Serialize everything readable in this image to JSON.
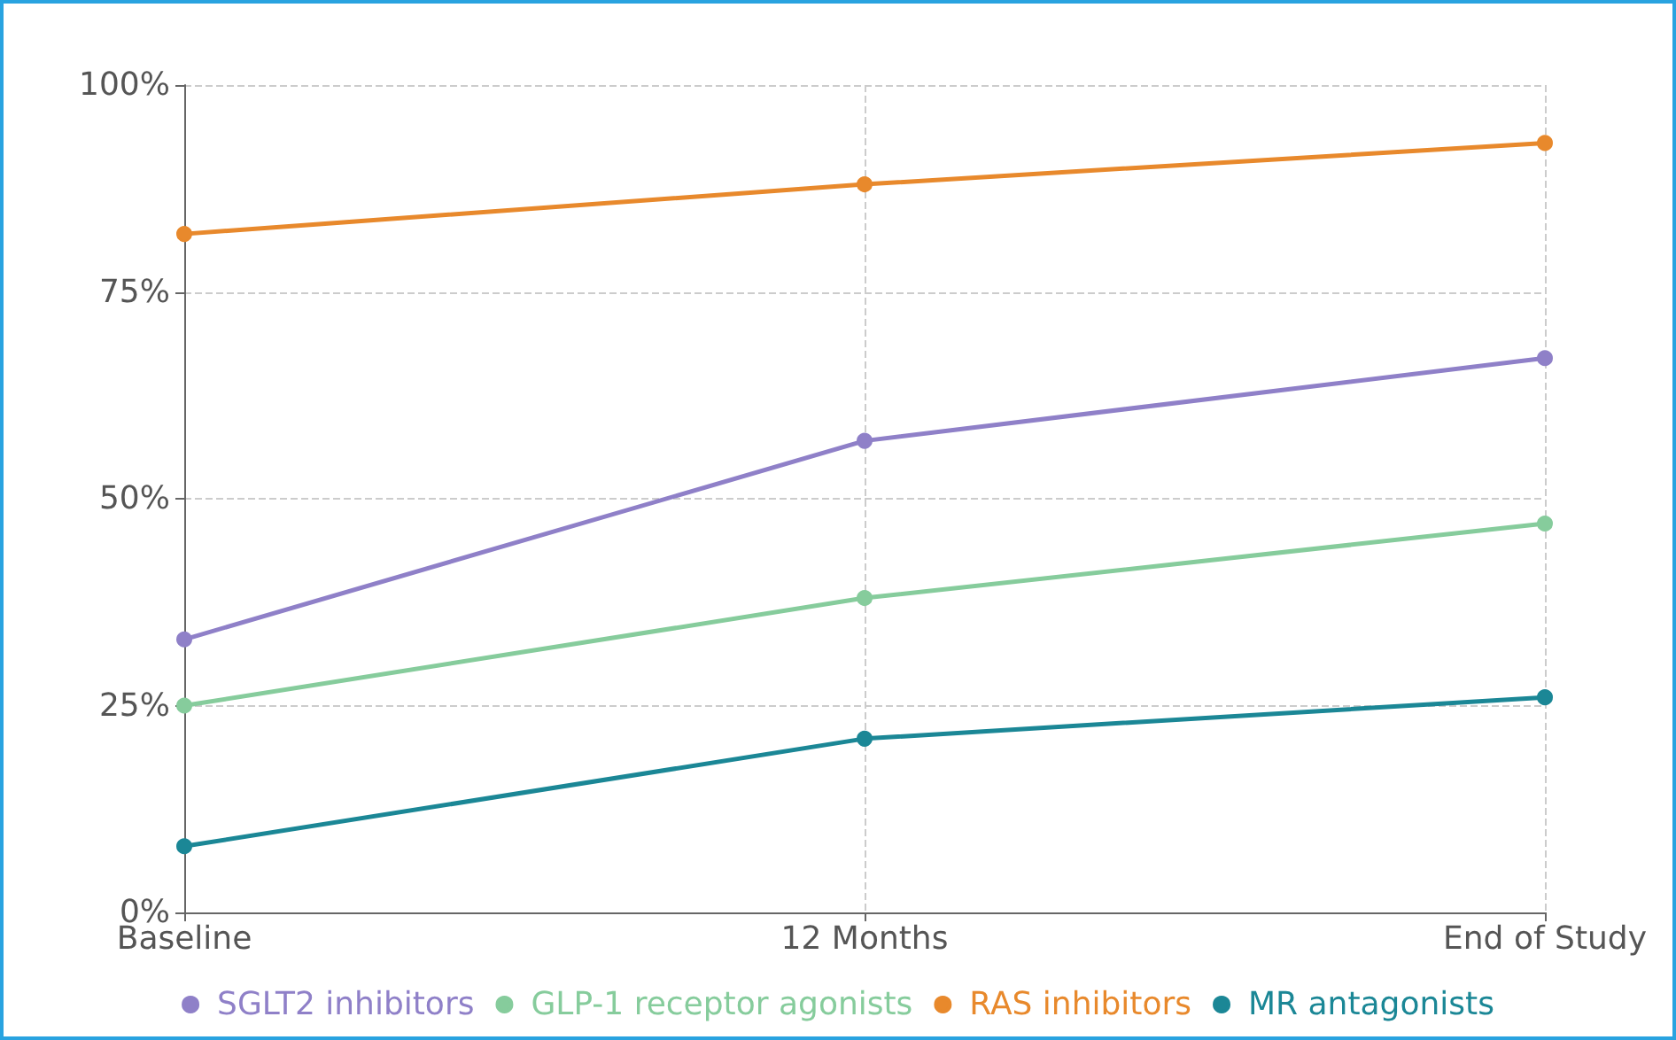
{
  "chart_data": {
    "type": "line",
    "categories": [
      "Baseline",
      "12 Months",
      "End of Study"
    ],
    "series": [
      {
        "name": "SGLT2 inhibitors",
        "color": "#8f80c8",
        "values": [
          33,
          57,
          67
        ]
      },
      {
        "name": "GLP-1 receptor agonists",
        "color": "#86cc9c",
        "values": [
          25,
          38,
          47
        ]
      },
      {
        "name": "RAS inhibitors",
        "color": "#e8892c",
        "values": [
          82,
          88,
          93
        ]
      },
      {
        "name": "MR antagonists",
        "color": "#1b8796",
        "values": [
          8,
          21,
          26
        ]
      }
    ],
    "ylim": [
      0,
      100
    ],
    "yticks": [
      {
        "value": 0,
        "label": "0%"
      },
      {
        "value": 25,
        "label": "25%"
      },
      {
        "value": 50,
        "label": "50%"
      },
      {
        "value": 75,
        "label": "75%"
      },
      {
        "value": 100,
        "label": "100%"
      }
    ],
    "grid": true,
    "legend": "bottom",
    "marker": "circle",
    "line_style": "solid"
  }
}
